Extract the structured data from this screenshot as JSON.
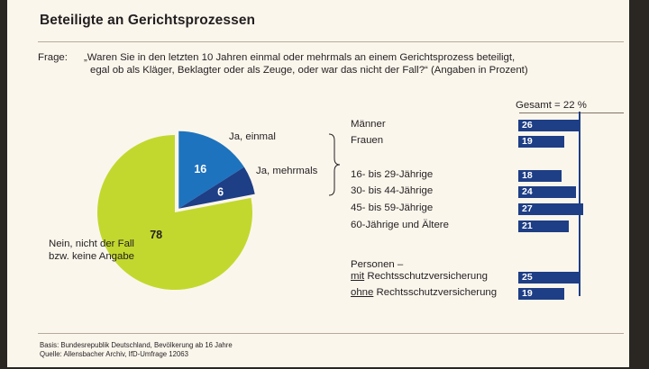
{
  "title": "Beteiligte an Gerichtsprozessen",
  "question": {
    "label": "Frage:",
    "line1": "„Waren Sie in den letzten 10 Jahren einmal oder mehrmals an einem Gerichtsprozess beteiligt,",
    "line2": "egal ob als Kläger, Beklagter oder als Zeuge, oder war das nicht der Fall?“ (Angaben in Prozent)"
  },
  "total_label": "Gesamt = 22 %",
  "personen_label": "Personen –",
  "footer": {
    "basis": "Basis: Bundesrepublik Deutschland, Bevölkerung ab 16 Jahre",
    "quelle": "Quelle: Allensbacher Archiv, IfD-Umfrage 12063"
  },
  "colors": {
    "bar": "#1e3e86",
    "pie_einmal": "#1e73be",
    "pie_mehrmals": "#1e3e86",
    "pie_nein": "#c3d82e"
  },
  "chart_data": [
    {
      "type": "pie",
      "slices": [
        {
          "label": "Ja, einmal",
          "value": 16
        },
        {
          "label": "Ja, mehrmals",
          "value": 6
        },
        {
          "label": "Nein, nicht der Fall bzw. keine Angabe",
          "value": 78
        }
      ]
    },
    {
      "type": "bar",
      "orientation": "horizontal",
      "reference_line": 22,
      "categories": [
        "Männer",
        "Frauen",
        "16- bis 29-Jährige",
        "30- bis 44-Jährige",
        "45- bis 59-Jährige",
        "60-Jährige und Ältere",
        "mit Rechtsschutzversicherung",
        "ohne Rechtsschutzversicherung"
      ],
      "values": [
        26,
        19,
        18,
        24,
        27,
        21,
        25,
        19
      ]
    }
  ]
}
